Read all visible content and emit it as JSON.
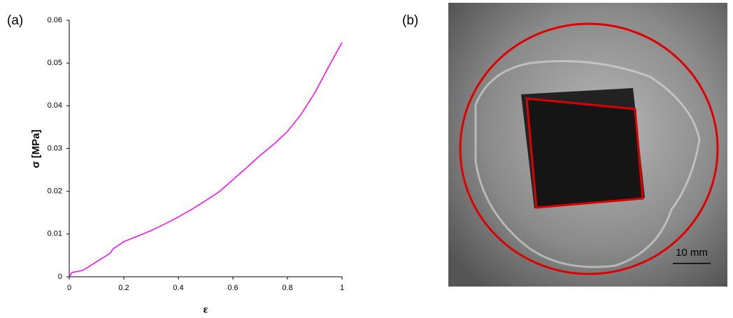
{
  "chart_data": {
    "type": "line",
    "panel_label": "(a)",
    "x_label": "ε",
    "y_label": "σ [MPa]",
    "x": [
      0,
      0.01,
      0.05,
      0.1,
      0.15,
      0.16,
      0.2,
      0.25,
      0.3,
      0.35,
      0.4,
      0.45,
      0.5,
      0.55,
      0.6,
      0.65,
      0.7,
      0.75,
      0.8,
      0.85,
      0.9,
      0.95,
      1.0
    ],
    "series": [
      {
        "color": "#ff00ff",
        "values": [
          0,
          0.001,
          0.0015,
          0.0035,
          0.0055,
          0.0065,
          0.0082,
          0.0095,
          0.0108,
          0.0123,
          0.014,
          0.0158,
          0.0178,
          0.0199,
          0.0227,
          0.0255,
          0.0284,
          0.031,
          0.034,
          0.038,
          0.043,
          0.049,
          0.0548
        ]
      }
    ],
    "xlim": [
      0,
      1
    ],
    "ylim": [
      0,
      0.06
    ],
    "xticks": [
      0,
      0.2,
      0.4,
      0.6,
      0.8,
      1
    ],
    "yticks": [
      0,
      0.01,
      0.02,
      0.03,
      0.04,
      0.05,
      0.06
    ],
    "grid": false
  },
  "photo": {
    "panel_label": "(b)",
    "scale_bar": "10 mm"
  }
}
